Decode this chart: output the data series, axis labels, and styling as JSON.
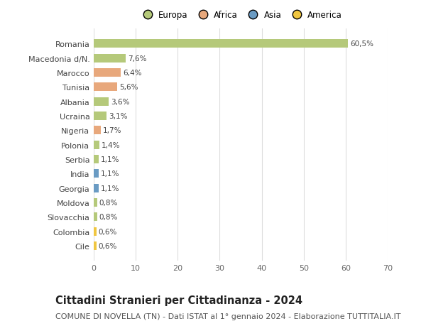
{
  "countries": [
    "Romania",
    "Macedonia d/N.",
    "Marocco",
    "Tunisia",
    "Albania",
    "Ucraina",
    "Nigeria",
    "Polonia",
    "Serbia",
    "India",
    "Georgia",
    "Moldova",
    "Slovacchia",
    "Colombia",
    "Cile"
  ],
  "values": [
    60.5,
    7.6,
    6.4,
    5.6,
    3.6,
    3.1,
    1.7,
    1.4,
    1.1,
    1.1,
    1.1,
    0.8,
    0.8,
    0.6,
    0.6
  ],
  "labels": [
    "60,5%",
    "7,6%",
    "6,4%",
    "5,6%",
    "3,6%",
    "3,1%",
    "1,7%",
    "1,4%",
    "1,1%",
    "1,1%",
    "1,1%",
    "0,8%",
    "0,8%",
    "0,6%",
    "0,6%"
  ],
  "colors": [
    "#b5c97a",
    "#b5c97a",
    "#e8a87c",
    "#e8a87c",
    "#b5c97a",
    "#b5c97a",
    "#e8a87c",
    "#b5c97a",
    "#b5c97a",
    "#6a9bc3",
    "#6a9bc3",
    "#b5c97a",
    "#b5c97a",
    "#f0c640",
    "#f0c640"
  ],
  "legend_labels": [
    "Europa",
    "Africa",
    "Asia",
    "America"
  ],
  "legend_colors": [
    "#b5c97a",
    "#e8a87c",
    "#6a9bc3",
    "#f0c640"
  ],
  "title": "Cittadini Stranieri per Cittadinanza - 2024",
  "subtitle": "COMUNE DI NOVELLA (TN) - Dati ISTAT al 1° gennaio 2024 - Elaborazione TUTTITALIA.IT",
  "xlim": [
    0,
    70
  ],
  "xticks": [
    0,
    10,
    20,
    30,
    40,
    50,
    60,
    70
  ],
  "bg_color": "#ffffff",
  "grid_color": "#dddddd",
  "bar_height": 0.6,
  "title_fontsize": 10.5,
  "subtitle_fontsize": 8,
  "label_fontsize": 7.5,
  "tick_fontsize": 8,
  "legend_fontsize": 8.5
}
